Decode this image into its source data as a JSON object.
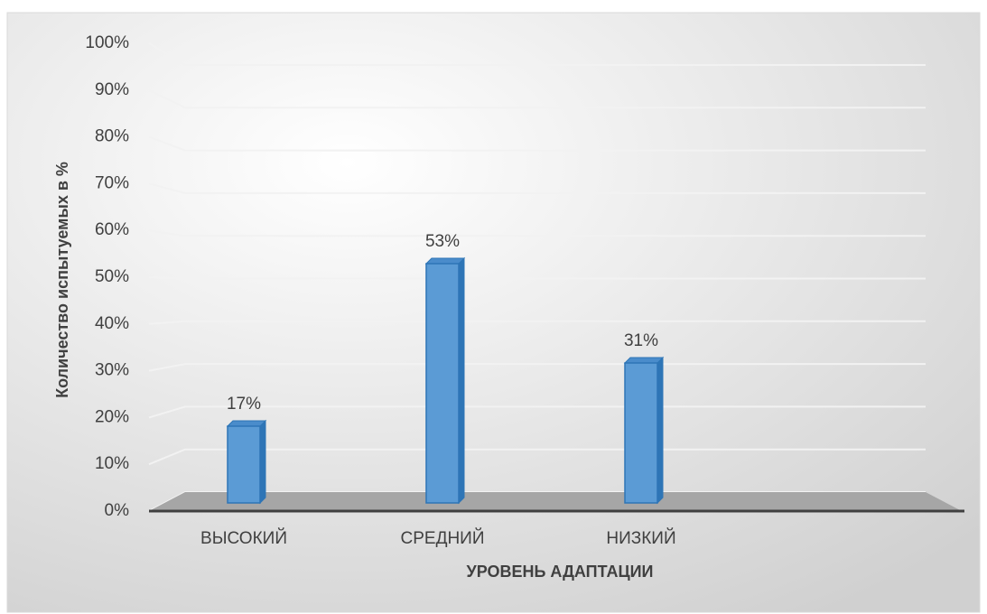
{
  "chart_data": {
    "type": "bar",
    "x_label": "УРОВЕНЬ АДАПТАЦИИ",
    "y_label": "Количество испытуемых в %",
    "categories": [
      "ВЫСОКИЙ",
      "СРЕДНИЙ",
      "НИЗКИЙ"
    ],
    "values": [
      17,
      53,
      31
    ],
    "value_labels": [
      "17%",
      "53%",
      "31%"
    ],
    "color": "#5b9bd5",
    "ylim": [
      0,
      100
    ],
    "yticks": [
      {
        "value": 0,
        "label": "0%"
      },
      {
        "value": 10,
        "label": "10%"
      },
      {
        "value": 20,
        "label": "20%"
      },
      {
        "value": 30,
        "label": "30%"
      },
      {
        "value": 40,
        "label": "40%"
      },
      {
        "value": 50,
        "label": "50%"
      },
      {
        "value": 60,
        "label": "60%"
      },
      {
        "value": 70,
        "label": "70%"
      },
      {
        "value": 80,
        "label": "80%"
      },
      {
        "value": 90,
        "label": "90%"
      },
      {
        "value": 100,
        "label": "100%"
      }
    ],
    "grid": true
  }
}
